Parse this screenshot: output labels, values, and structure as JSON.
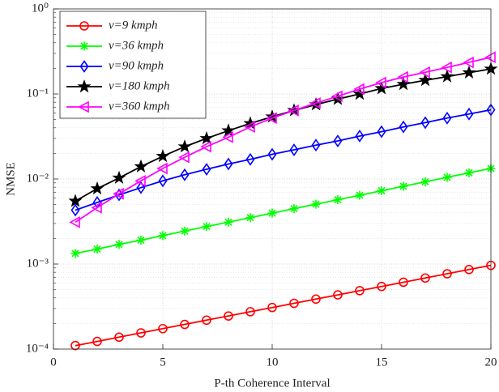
{
  "chart_data": {
    "type": "line",
    "xlabel": "P-th Coherence Interval",
    "ylabel": "NMSE",
    "x": [
      1,
      2,
      3,
      4,
      5,
      6,
      7,
      8,
      9,
      10,
      11,
      12,
      13,
      14,
      15,
      16,
      17,
      18,
      19,
      20
    ],
    "xlim": [
      0,
      20
    ],
    "xticks": [
      0,
      5,
      10,
      15,
      20
    ],
    "ylim": [
      0.0001,
      1
    ],
    "yscale": "log",
    "yticks": [
      {
        "value": 0.0001,
        "label": "10⁻⁴"
      },
      {
        "value": 0.001,
        "label": "10⁻³"
      },
      {
        "value": 0.01,
        "label": "10⁻²"
      },
      {
        "value": 0.1,
        "label": "10⁻¹"
      },
      {
        "value": 1,
        "label": "10⁰"
      }
    ],
    "grid": true,
    "legend": "upper left",
    "series": [
      {
        "name": "v=9 kmph",
        "color": "#ff0000",
        "marker": "circle",
        "values": [
          0.00011,
          0.000123,
          0.000138,
          0.000155,
          0.000174,
          0.000195,
          0.000219,
          0.000245,
          0.000275,
          0.000308,
          0.000345,
          0.000387,
          0.000434,
          0.000486,
          0.000545,
          0.000611,
          0.000685,
          0.000768,
          0.000861,
          0.000965
        ]
      },
      {
        "name": "v=36 kmph",
        "color": "#00ff00",
        "marker": "asterisk",
        "values": [
          0.00133,
          0.0015,
          0.0017,
          0.00191,
          0.00216,
          0.00244,
          0.00276,
          0.00311,
          0.00351,
          0.00397,
          0.00448,
          0.00506,
          0.00571,
          0.00644,
          0.00728,
          0.00821,
          0.00927,
          0.01047,
          0.01182,
          0.0133
        ]
      },
      {
        "name": "v=90 kmph",
        "color": "#0000ff",
        "marker": "diamond",
        "values": [
          0.0043,
          0.0053,
          0.0065,
          0.0079,
          0.0095,
          0.0112,
          0.013,
          0.015,
          0.017,
          0.0195,
          0.022,
          0.025,
          0.028,
          0.032,
          0.036,
          0.041,
          0.046,
          0.052,
          0.058,
          0.065
        ]
      },
      {
        "name": "v=180 kmph",
        "color": "#000000",
        "marker": "star",
        "values": [
          0.0055,
          0.0077,
          0.0103,
          0.014,
          0.0185,
          0.024,
          0.03,
          0.037,
          0.045,
          0.054,
          0.064,
          0.075,
          0.087,
          0.1,
          0.116,
          0.13,
          0.145,
          0.16,
          0.178,
          0.197
        ]
      },
      {
        "name": "v=360 kmph",
        "color": "#ff00ff",
        "marker": "triangle-left",
        "values": [
          0.0031,
          0.0046,
          0.0067,
          0.0095,
          0.0133,
          0.018,
          0.024,
          0.031,
          0.041,
          0.052,
          0.064,
          0.078,
          0.094,
          0.114,
          0.136,
          0.158,
          0.18,
          0.205,
          0.235,
          0.27
        ]
      }
    ]
  }
}
